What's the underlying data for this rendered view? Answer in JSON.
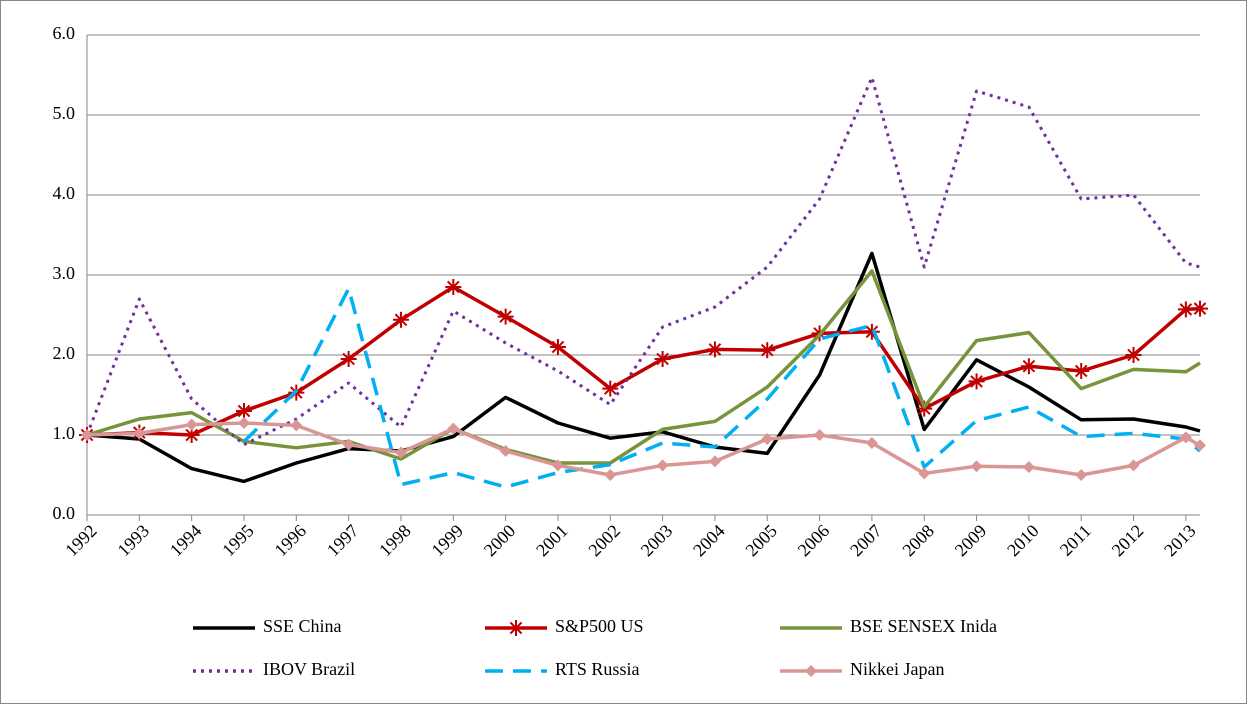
{
  "chart_data": {
    "type": "line",
    "x": [
      1992,
      1993,
      1994,
      1995,
      1996,
      1997,
      1998,
      1999,
      2000,
      2001,
      2002,
      2003,
      2004,
      2005,
      2006,
      2007,
      2008,
      2009,
      2010,
      2011,
      2012,
      2013,
      2013.27
    ],
    "xlim": [
      1992,
      2013.27
    ],
    "xticks": [
      1992,
      1993,
      1994,
      1995,
      1996,
      1997,
      1998,
      1999,
      2000,
      2001,
      2002,
      2003,
      2004,
      2005,
      2006,
      2007,
      2008,
      2009,
      2010,
      2011,
      2012,
      2013
    ],
    "ylim": [
      0,
      6
    ],
    "yticks": [
      {
        "value": 0,
        "label": "0.0"
      },
      {
        "value": 1,
        "label": "1.0"
      },
      {
        "value": 2,
        "label": "2.0"
      },
      {
        "value": 3,
        "label": "3.0"
      },
      {
        "value": 4,
        "label": "4.0"
      },
      {
        "value": 5,
        "label": "5.0"
      },
      {
        "value": 6,
        "label": "6.0"
      }
    ],
    "grid": true,
    "legend": "bottom",
    "series": [
      {
        "name": "SSE China",
        "color": "#000000",
        "dash": "solid",
        "marker": "none",
        "values": [
          1.0,
          0.95,
          0.58,
          0.42,
          0.65,
          0.83,
          0.8,
          0.98,
          1.47,
          1.15,
          0.96,
          1.04,
          0.85,
          0.77,
          1.75,
          3.27,
          1.07,
          1.94,
          1.6,
          1.19,
          1.2,
          1.1,
          1.05
        ]
      },
      {
        "name": "S&P500 US",
        "color": "#c00000",
        "dash": "solid",
        "marker": "asterisk",
        "values": [
          1.0,
          1.03,
          1.0,
          1.3,
          1.53,
          1.95,
          2.44,
          2.85,
          2.48,
          2.1,
          1.58,
          1.95,
          2.07,
          2.06,
          2.27,
          2.29,
          1.33,
          1.67,
          1.86,
          1.8,
          2.0,
          2.57,
          2.58
        ]
      },
      {
        "name": "BSE SENSEX Inida",
        "color": "#77933c",
        "dash": "solid",
        "marker": "none",
        "values": [
          1.0,
          1.2,
          1.28,
          0.92,
          0.84,
          0.92,
          0.7,
          1.08,
          0.82,
          0.65,
          0.65,
          1.07,
          1.17,
          1.6,
          2.25,
          3.05,
          1.35,
          2.18,
          2.28,
          1.58,
          1.82,
          1.79,
          1.9
        ]
      },
      {
        "name": "IBOV Brazil",
        "color": "#7030a0",
        "dash": "dotted",
        "marker": "none",
        "values": [
          1.0,
          2.7,
          1.45,
          0.88,
          1.2,
          1.65,
          1.1,
          2.55,
          2.15,
          1.8,
          1.38,
          2.35,
          2.6,
          3.1,
          3.95,
          5.47,
          3.1,
          5.3,
          5.1,
          3.95,
          4.0,
          3.15,
          3.1
        ]
      },
      {
        "name": "RTS Russia",
        "color": "#00b0f0",
        "dash": "dashed",
        "marker": "none",
        "values": [
          null,
          null,
          null,
          0.92,
          1.55,
          2.83,
          0.38,
          0.53,
          0.35,
          0.53,
          0.63,
          0.9,
          0.85,
          1.45,
          2.2,
          2.37,
          0.6,
          1.18,
          1.35,
          0.98,
          1.02,
          0.95,
          0.8
        ]
      },
      {
        "name": "Nikkei Japan",
        "color": "#d99694",
        "dash": "solid",
        "marker": "diamond",
        "values": [
          1.0,
          1.02,
          1.13,
          1.15,
          1.12,
          0.88,
          0.78,
          1.08,
          0.8,
          0.62,
          0.5,
          0.62,
          0.67,
          0.95,
          1.0,
          0.9,
          0.52,
          0.61,
          0.6,
          0.5,
          0.62,
          0.97,
          0.87
        ]
      }
    ]
  }
}
